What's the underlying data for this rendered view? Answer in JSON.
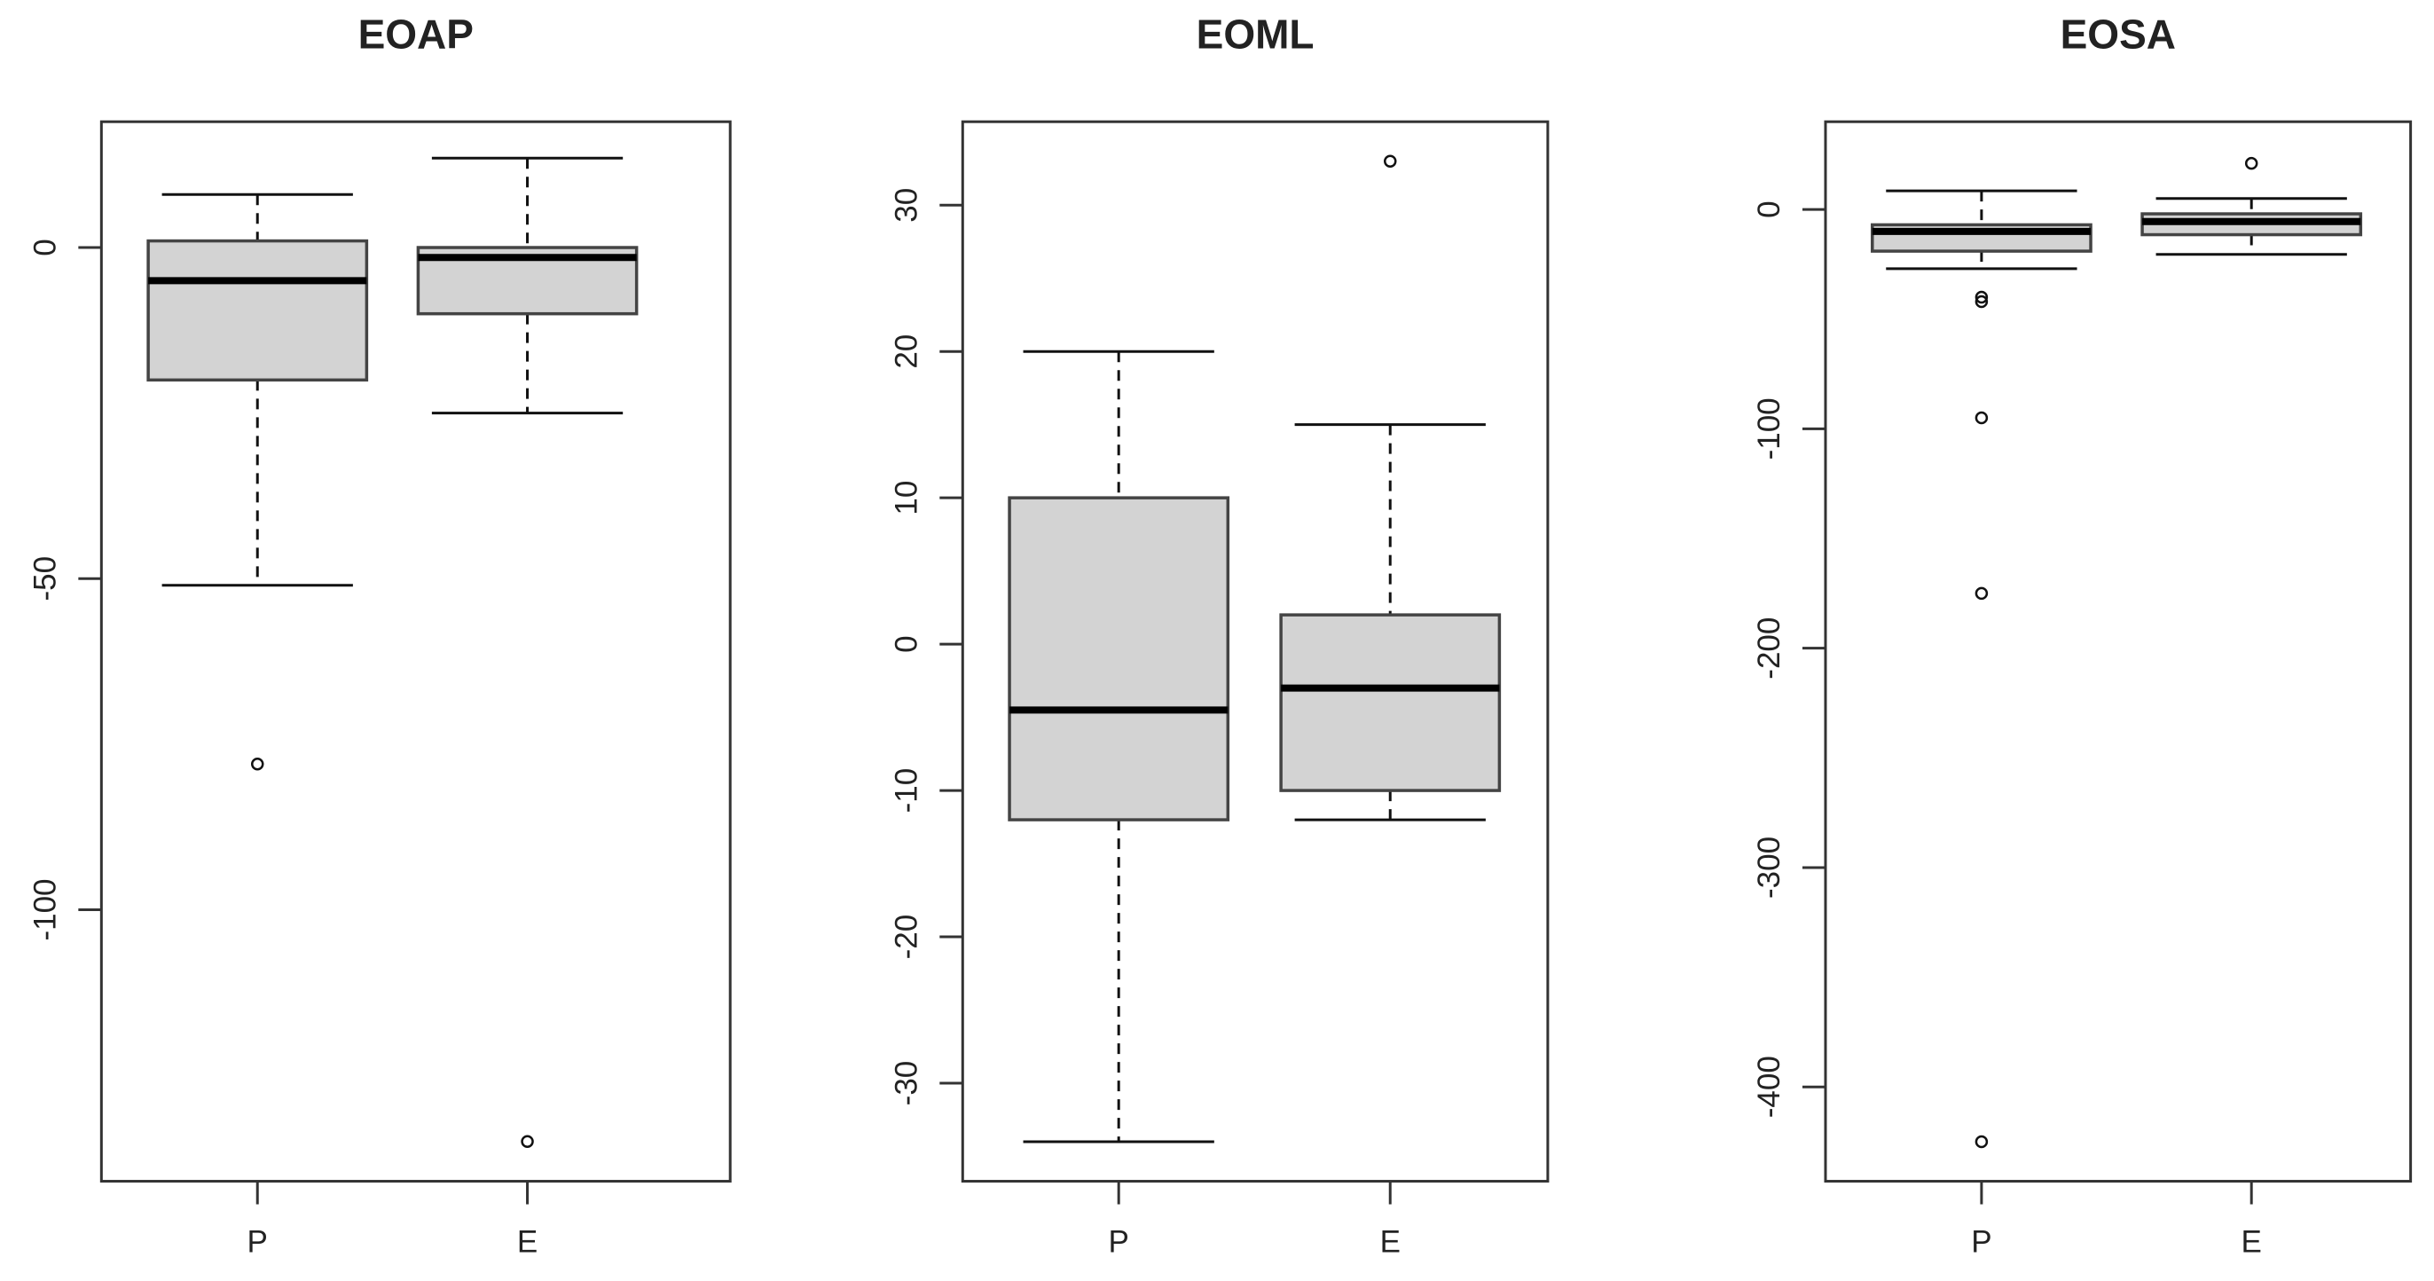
{
  "chart_data": [
    {
      "type": "boxplot",
      "title": "EOAP",
      "categories": [
        "P",
        "E"
      ],
      "ylim": [
        -141,
        19
      ],
      "yticks": [
        0,
        -50,
        -100
      ],
      "xlabel": "",
      "ylabel": "",
      "grid": false,
      "boxes": [
        {
          "name": "P",
          "whisker_high": 8,
          "q3": 1,
          "median": -5,
          "q1": -20,
          "whisker_low": -51,
          "outliers": [
            -78
          ]
        },
        {
          "name": "E",
          "whisker_high": 13.5,
          "q3": 0,
          "median": -1.5,
          "q1": -10,
          "whisker_low": -25,
          "outliers": [
            -135
          ]
        }
      ]
    },
    {
      "type": "boxplot",
      "title": "EOML",
      "categories": [
        "P",
        "E"
      ],
      "ylim": [
        -36.7,
        35.7
      ],
      "yticks": [
        30,
        20,
        10,
        0,
        -10,
        -20,
        -30
      ],
      "xlabel": "",
      "ylabel": "",
      "grid": false,
      "boxes": [
        {
          "name": "P",
          "whisker_high": 20,
          "q3": 10,
          "median": -4.5,
          "q1": -12,
          "whisker_low": -34,
          "outliers": []
        },
        {
          "name": "E",
          "whisker_high": 15,
          "q3": 2,
          "median": -3,
          "q1": -10,
          "whisker_low": -12,
          "outliers": [
            33
          ]
        }
      ]
    },
    {
      "type": "boxplot",
      "title": "EOSA",
      "categories": [
        "P",
        "E"
      ],
      "ylim": [
        -443,
        40
      ],
      "yticks": [
        0,
        -100,
        -200,
        -300,
        -400
      ],
      "xlabel": "",
      "ylabel": "",
      "grid": false,
      "boxes": [
        {
          "name": "P",
          "whisker_high": 8.5,
          "q3": -7,
          "median": -10,
          "q1": -19,
          "whisker_low": -27,
          "outliers": [
            -40,
            -42,
            -95,
            -175,
            -425
          ]
        },
        {
          "name": "E",
          "whisker_high": 5,
          "q3": -2,
          "median": -5.5,
          "q1": -11.5,
          "whisker_low": -20.5,
          "outliers": [
            21
          ]
        }
      ]
    }
  ],
  "colors": {
    "box_fill": "#d3d3d3",
    "box_stroke": "#444444",
    "median": "#000000",
    "axis": "#333333"
  }
}
